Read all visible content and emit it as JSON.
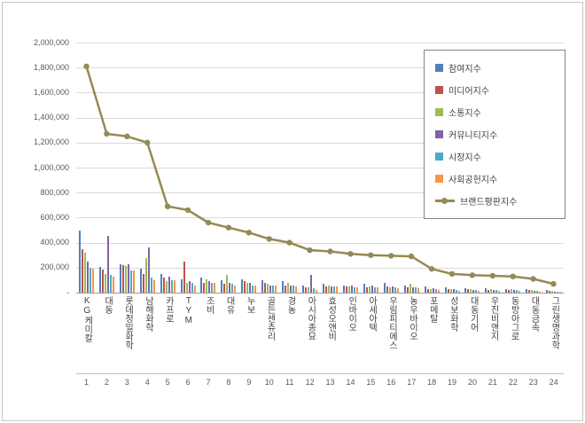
{
  "figure": {
    "background": "#ffffff",
    "frame_border_color": "#c6c6c6"
  },
  "chart_data": {
    "type": "bar+line",
    "title": "",
    "xlabel": "",
    "ylabel": "",
    "grid": true,
    "legend_position": "top-right",
    "categories": [
      "KG케미칼",
      "대동",
      "롯데정밀화학",
      "남해화학",
      "카프로",
      "TYM",
      "조비",
      "대유",
      "누보",
      "골든센츄리",
      "경농",
      "아시아종묘",
      "효성오앤비",
      "인바이오",
      "아세아텍",
      "우림피티에스",
      "농우바이오",
      "포메탈",
      "성보화학",
      "대동기어",
      "우진비앤지",
      "동방아그로",
      "대동금속",
      "그린생명과학"
    ],
    "category_ranks": [
      "1",
      "2",
      "3",
      "4",
      "5",
      "6",
      "7",
      "8",
      "9",
      "10",
      "11",
      "12",
      "13",
      "14",
      "15",
      "16",
      "17",
      "18",
      "19",
      "20",
      "21",
      "22",
      "23",
      "24"
    ],
    "y_axis": {
      "min": 0,
      "max": 2000000,
      "step": 200000,
      "tick_labels": [
        "2,000,000",
        "1,800,000",
        "1,600,000",
        "1,400,000",
        "1,200,000",
        "1,000,000",
        "800,000",
        "600,000",
        "400,000",
        "200,000",
        "-"
      ]
    },
    "series": [
      {
        "name": "참여지수",
        "kind": "bar",
        "color": "#4F81BD",
        "values": [
          500000,
          205000,
          230000,
          190000,
          150000,
          105000,
          120000,
          100000,
          110000,
          100000,
          90000,
          55000,
          70000,
          60000,
          70000,
          80000,
          60000,
          50000,
          40000,
          35000,
          35000,
          30000,
          30000,
          20000
        ]
      },
      {
        "name": "미디어지수",
        "kind": "bar",
        "color": "#C0504D",
        "values": [
          345000,
          185000,
          220000,
          150000,
          120000,
          250000,
          80000,
          70000,
          90000,
          80000,
          60000,
          45000,
          50000,
          50000,
          40000,
          50000,
          40000,
          30000,
          25000,
          25000,
          20000,
          20000,
          20000,
          12000
        ]
      },
      {
        "name": "소통지수",
        "kind": "bar",
        "color": "#9BBB59",
        "values": [
          320000,
          150000,
          210000,
          280000,
          90000,
          80000,
          110000,
          140000,
          80000,
          70000,
          80000,
          45000,
          60000,
          50000,
          50000,
          40000,
          70000,
          30000,
          25000,
          25000,
          25000,
          25000,
          20000,
          12000
        ]
      },
      {
        "name": "커뮤니티지수",
        "kind": "bar",
        "color": "#8064A2",
        "values": [
          250000,
          455000,
          230000,
          360000,
          130000,
          90000,
          90000,
          80000,
          80000,
          60000,
          60000,
          140000,
          50000,
          60000,
          60000,
          50000,
          45000,
          35000,
          25000,
          20000,
          20000,
          20000,
          15000,
          10000
        ]
      },
      {
        "name": "시장지수",
        "kind": "bar",
        "color": "#4BACC6",
        "values": [
          200000,
          145000,
          180000,
          120000,
          100000,
          75000,
          80000,
          70000,
          60000,
          60000,
          60000,
          35000,
          50000,
          45000,
          40000,
          40000,
          40000,
          25000,
          20000,
          20000,
          20000,
          20000,
          15000,
          8000
        ]
      },
      {
        "name": "사회공헌지수",
        "kind": "bar",
        "color": "#F79646",
        "values": [
          195000,
          130000,
          180000,
          100000,
          100000,
          60000,
          80000,
          60000,
          60000,
          60000,
          50000,
          20000,
          50000,
          45000,
          40000,
          35000,
          35000,
          20000,
          15000,
          15000,
          15000,
          15000,
          10000,
          8000
        ]
      },
      {
        "name": "브랜드평판지수",
        "kind": "line",
        "color": "#948A54",
        "values": [
          1810000,
          1270000,
          1250000,
          1200000,
          690000,
          660000,
          560000,
          520000,
          480000,
          430000,
          400000,
          340000,
          330000,
          310000,
          300000,
          295000,
          290000,
          190000,
          150000,
          140000,
          135000,
          130000,
          110000,
          70000
        ]
      }
    ]
  }
}
